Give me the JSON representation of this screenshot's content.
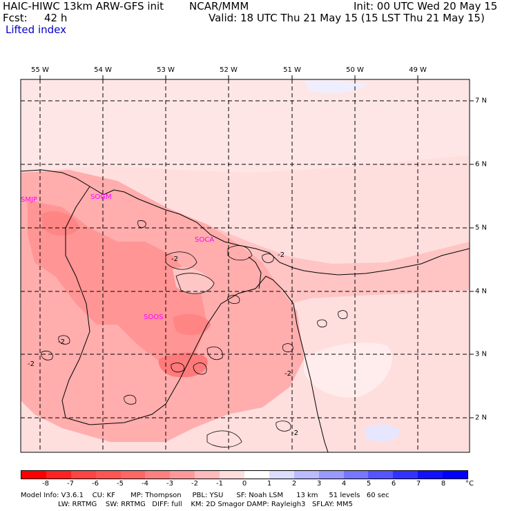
{
  "header": {
    "model_title": "HAIC-HIWC 13km ARW-GFS init",
    "org": "NCAR/MMM",
    "init": "Init: 00 UTC Wed 20 May 15",
    "fcst_label": "Fcst:",
    "fcst_value": "42 h",
    "valid": "Valid: 18 UTC Thu 21 May 15 (15 LST Thu 21 May 15)",
    "field": "Lifted index"
  },
  "map": {
    "longitude_labels": [
      "55 W",
      "54 W",
      "53 W",
      "52 W",
      "51 W",
      "50 W",
      "49 W"
    ],
    "latitude_labels": [
      "7 N",
      "6 N",
      "5 N",
      "4 N",
      "3 N",
      "2 N"
    ],
    "stations": [
      "SMJP",
      "SOCA",
      "SOOS",
      "SOGM"
    ],
    "contour_labels": [
      "-2",
      "-2",
      "-2",
      "-2",
      "-2",
      "-2"
    ]
  },
  "colorbar": {
    "labels": [
      "-8",
      "-7",
      "-6",
      "-5",
      "-4",
      "-3",
      "-2",
      "-1",
      "0",
      "1",
      "2",
      "3",
      "4",
      "5",
      "6",
      "7",
      "8"
    ],
    "unit": "°C",
    "colors": [
      "#ff0000",
      "#ff2222",
      "#ff4444",
      "#ff5555",
      "#ff6666",
      "#ff8080",
      "#ff9999",
      "#ffbbbb",
      "#ffdddd",
      "#ffffff",
      "#ddddff",
      "#bbbbff",
      "#9999ff",
      "#7777ff",
      "#5555ff",
      "#3333ff",
      "#1111ff",
      "#0000ff"
    ]
  },
  "footer": {
    "line1": "Model Info: V3.6.1    CU: KF       MP: Thompson     PBL: YSU      SF: Noah LSM      13 km     51 levels   60 sec",
    "line2": "                 LW: RRTMG    SW: RRTMG   DIFF: full    KM: 2D Smagor DAMP: Rayleigh3   SFLAY: MM5"
  }
}
